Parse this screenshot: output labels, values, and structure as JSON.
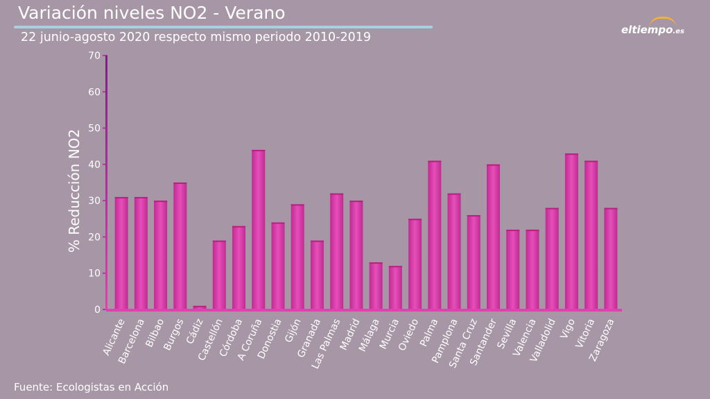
{
  "header": {
    "title": "Variación niveles NO2 - Verano",
    "subtitle": "22 junio-agosto 2020 respecto mismo periodo 2010-2019"
  },
  "logo": {
    "text_main": "eltiempo",
    "text_suffix": ".es"
  },
  "footer": {
    "source": "Fuente: Ecologistas en Acción"
  },
  "colors": {
    "background": "#a797a6",
    "bar": "#e040b0",
    "bar_dark": "#b8207f",
    "axis": "#8a2a8a",
    "title_rule": "#a8d0df"
  },
  "chart_data": {
    "type": "bar",
    "title": "Variación niveles NO2 - Verano",
    "subtitle": "22 junio-agosto 2020 respecto mismo periodo 2010-2019",
    "xlabel": "",
    "ylabel": "% Reducción NO2",
    "ylim": [
      0,
      70
    ],
    "yticks": [
      0,
      10,
      20,
      30,
      40,
      50,
      60,
      70
    ],
    "grid": false,
    "categories": [
      "Alicante",
      "Barcelona",
      "Bilbao",
      "Burgos",
      "Cádiz",
      "Castellón",
      "Córdoba",
      "A Coruña",
      "Donostia",
      "Gijón",
      "Granada",
      "Las Palmas",
      "Madrid",
      "Málaga",
      "Murcia",
      "Oviedo",
      "Palma",
      "Pamplona",
      "Santa Cruz",
      "Santander",
      "Sevilla",
      "Valencia",
      "Valladolid",
      "Vigo",
      "Vitoria",
      "Zaragoza"
    ],
    "values": [
      31,
      31,
      30,
      35,
      1,
      19,
      23,
      44,
      24,
      29,
      19,
      32,
      30,
      13,
      12,
      25,
      41,
      32,
      26,
      40,
      22,
      22,
      28,
      43,
      41,
      28
    ]
  }
}
